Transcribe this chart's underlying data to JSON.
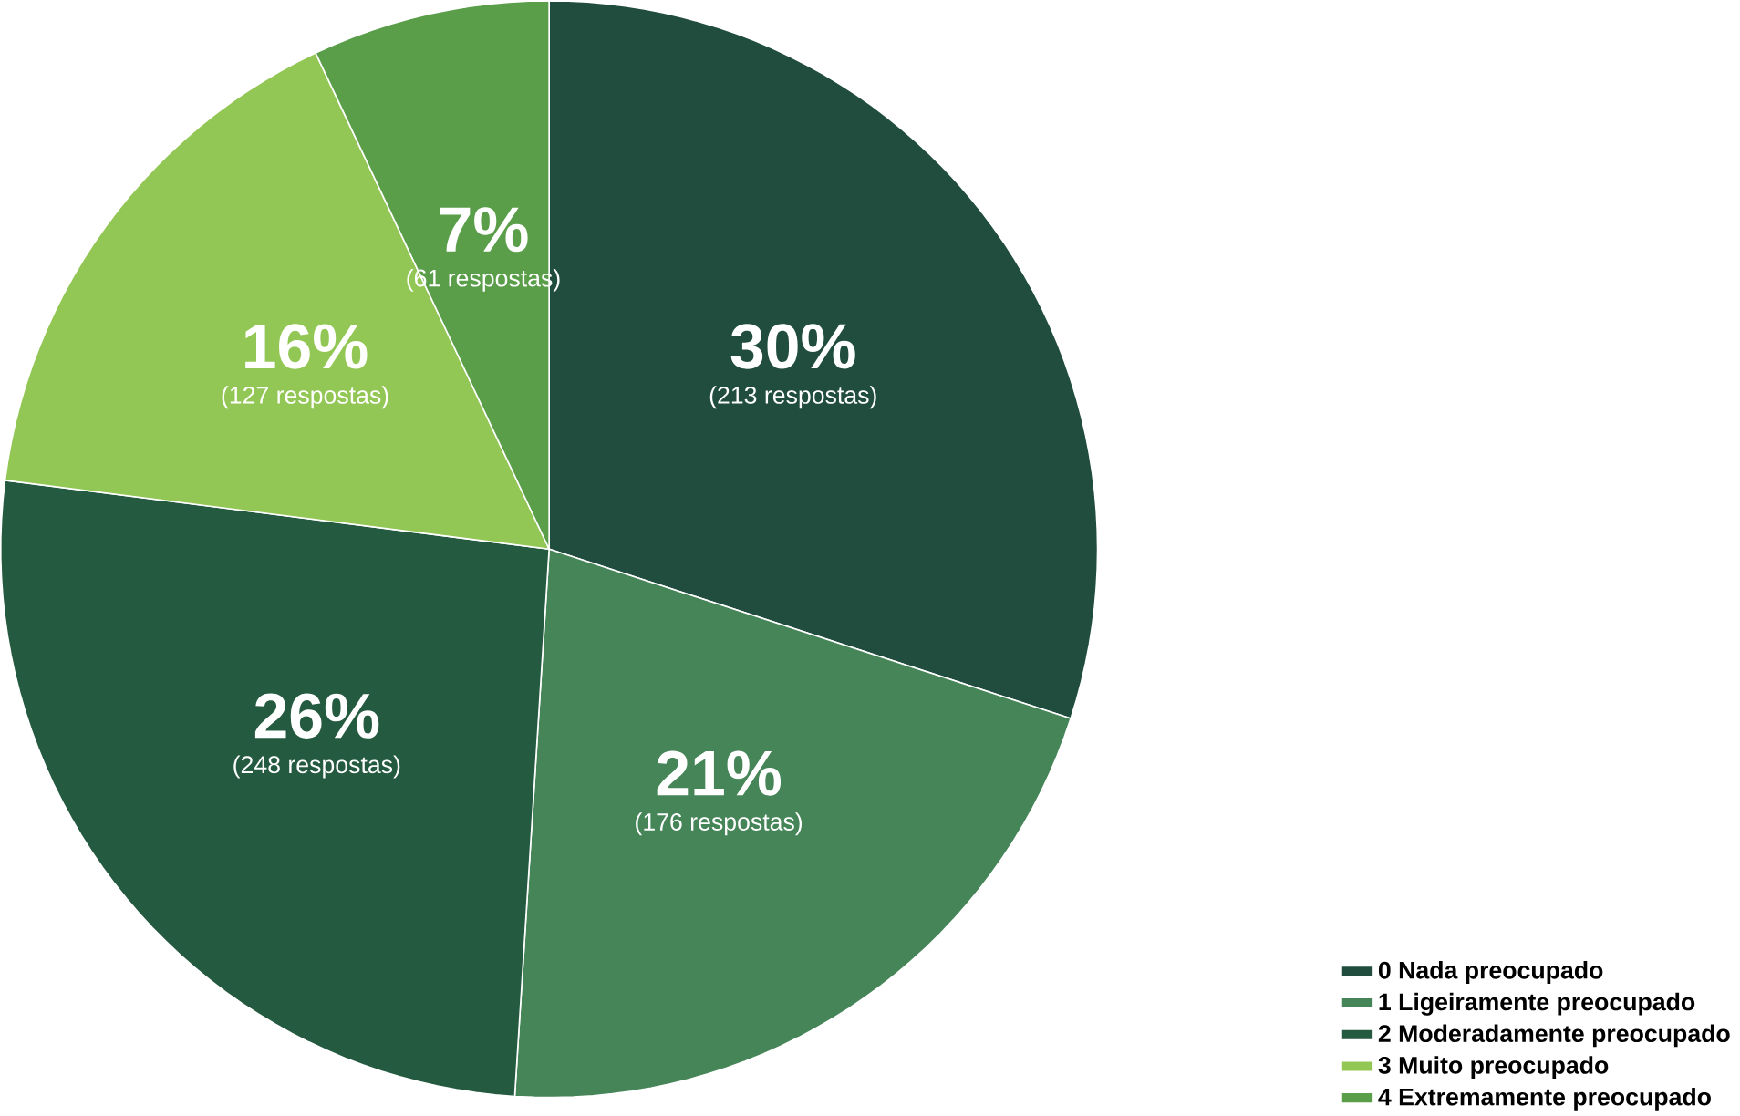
{
  "chart_data": {
    "type": "pie",
    "categories": [
      "0 Nada preocupado",
      "1 Ligeiramente preocupado",
      "2 Moderadamente preocupado",
      "3 Muito preocupado",
      "4 Extremamente preocupado"
    ],
    "values": [
      30,
      21,
      26,
      16,
      7
    ],
    "colors": [
      "#214d3f",
      "#468558",
      "#245a3f",
      "#93c755",
      "#5a9e4a"
    ],
    "value_labels": [
      "30%",
      "21%",
      "26%",
      "16%",
      "7%"
    ],
    "annotations": [
      {
        "text": "(213 respostas)",
        "x": "0 Nada preocupado"
      },
      {
        "text": "(176 respostas)",
        "x": "1 Ligeiramente preocupado"
      },
      {
        "text": "(248 respostas)",
        "x": "2 Moderadamente preocupado"
      },
      {
        "text": "(127 respostas)",
        "x": "3 Muito preocupado"
      },
      {
        "text": "(61 respostas)",
        "x": "4 Extremamente preocupado"
      }
    ],
    "legend": "bottom right"
  }
}
